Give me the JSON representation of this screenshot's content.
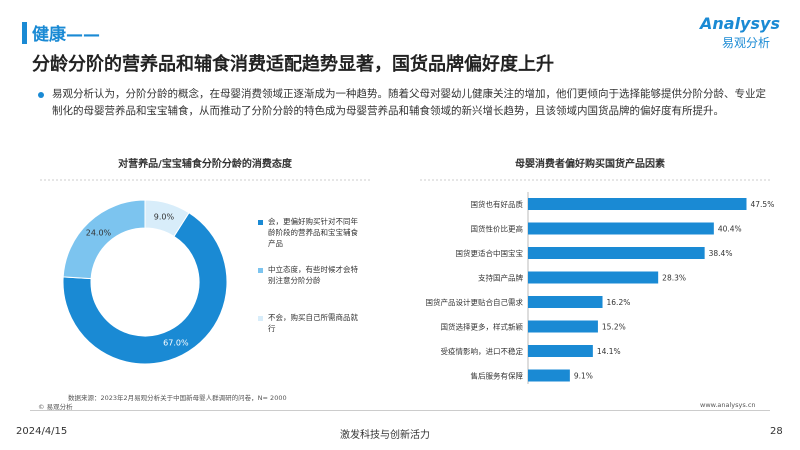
{
  "header": {
    "section": "健康——",
    "title": "分龄分阶的营养品和辅食消费适配趋势显著，国货品牌偏好度上升",
    "logo": "Analysys",
    "logo_sub": "易观分析"
  },
  "summary": "易观分析认为，分阶分龄的概念，在母婴消费领域正逐渐成为一种趋势。随着父母对婴幼儿健康关注的增加，他们更倾向于选择能够提供分阶分龄、专业定制化的母婴营养品和宝宝辅食，从而推动了分阶分龄的特色成为母婴营养品和辅食领域的新兴增长趋势，且该领域内国货品牌的偏好度有所提升。",
  "chart_data": [
    {
      "type": "pie",
      "title": "对营养品/宝宝辅食分阶分龄的消费态度",
      "categories": [
        "会，更偏好购买针对不同年龄阶段的营养品和宝宝辅食产品",
        "中立态度，有些时候才会特别注意分阶分龄",
        "不会，购买自己所需商品就行"
      ],
      "values": [
        67,
        24,
        9
      ],
      "value_labels": [
        "67.0%",
        "24.0%",
        "9.0%"
      ],
      "colors": [
        "#1a8ad4",
        "#7cc4ef",
        "#d8edfa"
      ]
    },
    {
      "type": "hbar",
      "title": "母婴消费者偏好购买国货产品因素",
      "categories": [
        "国货也有好品质",
        "国货性价比更高",
        "国货更适合中国宝宝",
        "支持国产品牌",
        "国货产品设计更贴合自己需求",
        "国货选择更多，样式新颖",
        "受疫情影响，进口不稳定",
        "售后服务有保障"
      ],
      "values": [
        47.5,
        40.4,
        38.4,
        28.3,
        16.2,
        15.2,
        14.1,
        9.1
      ],
      "value_labels": [
        "47.5%",
        "40.4%",
        "38.4%",
        "28.3%",
        "16.2%",
        "15.2%",
        "14.1%",
        "9.1%"
      ],
      "color": "#1a8ad4",
      "xlim": [
        0,
        50
      ]
    }
  ],
  "source": "数据来源：2023年2月易观分析关于中国新母婴人群调研的问卷，N= 2000",
  "footer": {
    "copyright": "© 易观分析",
    "url": "www.analysys.cn",
    "date": "2024/4/15",
    "slogan": "激发科技与创新活力",
    "page": "28"
  }
}
